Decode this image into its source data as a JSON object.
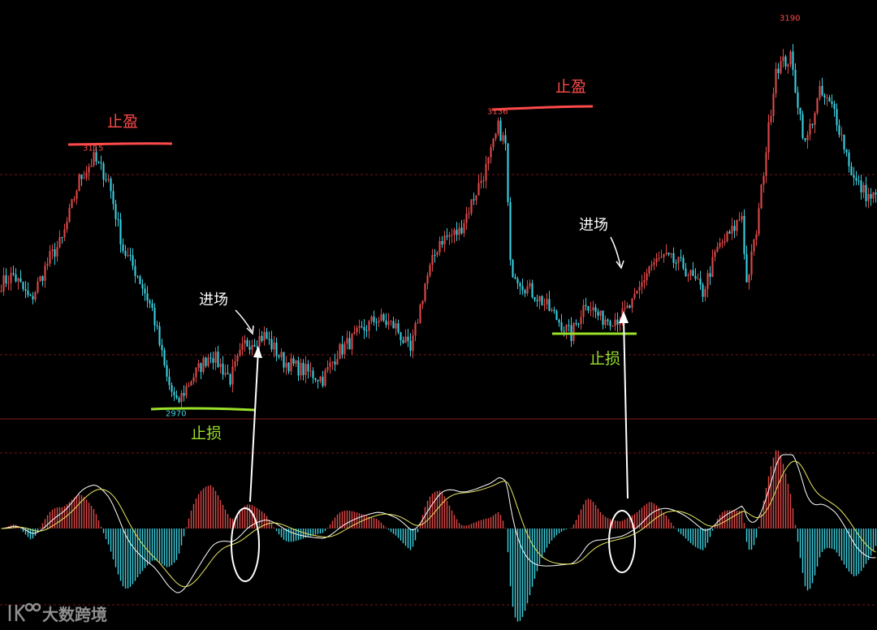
{
  "chart_data": {
    "type": "candlestick",
    "price_axis": {
      "ymin": 2945,
      "ymax": 3200
    },
    "price_labels": [
      {
        "value": 3115,
        "text": "3115",
        "color": "#ff4a4a"
      },
      {
        "value": 2970,
        "text": "2970",
        "color": "#3ad0e0"
      },
      {
        "value": 3136,
        "text": "3136",
        "color": "#ff4a4a"
      },
      {
        "value": 3190,
        "text": "3190",
        "color": "#ff4a4a"
      }
    ],
    "segments": [
      [
        0,
        3040,
        5,
        3045
      ],
      [
        5,
        3045,
        12,
        3030
      ],
      [
        12,
        3030,
        20,
        3055
      ],
      [
        20,
        3055,
        25,
        3065
      ],
      [
        25,
        3065,
        32,
        3100
      ],
      [
        32,
        3100,
        38,
        3112
      ],
      [
        38,
        3112,
        44,
        3100
      ],
      [
        44,
        3100,
        50,
        3060
      ],
      [
        50,
        3060,
        56,
        3045
      ],
      [
        56,
        3045,
        62,
        3025
      ],
      [
        62,
        3025,
        68,
        2985
      ],
      [
        68,
        2985,
        72,
        2970
      ],
      [
        72,
        2970,
        78,
        2985
      ],
      [
        78,
        2985,
        86,
        3000
      ],
      [
        86,
        3000,
        94,
        2985
      ],
      [
        94,
        2985,
        100,
        3005
      ],
      [
        100,
        3005,
        108,
        3010
      ],
      [
        108,
        3010,
        116,
        2995
      ],
      [
        116,
        2995,
        124,
        2990
      ],
      [
        124,
        2990,
        132,
        2985
      ],
      [
        132,
        2985,
        138,
        3000
      ],
      [
        138,
        3000,
        146,
        3010
      ],
      [
        146,
        3010,
        154,
        3020
      ],
      [
        154,
        3020,
        162,
        3015
      ],
      [
        162,
        3015,
        168,
        3000
      ],
      [
        168,
        3000,
        174,
        3040
      ],
      [
        174,
        3040,
        180,
        3065
      ],
      [
        180,
        3065,
        188,
        3070
      ],
      [
        188,
        3070,
        194,
        3090
      ],
      [
        194,
        3090,
        200,
        3110
      ],
      [
        200,
        3110,
        204,
        3130
      ],
      [
        204,
        3130,
        207,
        3120
      ],
      [
        207,
        3120,
        209,
        3050
      ],
      [
        209,
        3050,
        214,
        3040
      ],
      [
        214,
        3040,
        222,
        3030
      ],
      [
        222,
        3030,
        228,
        3020
      ],
      [
        228,
        3020,
        234,
        3010
      ],
      [
        234,
        3010,
        240,
        3030
      ],
      [
        240,
        3030,
        246,
        3020
      ],
      [
        246,
        3020,
        254,
        3020
      ],
      [
        254,
        3020,
        260,
        3030
      ],
      [
        260,
        3030,
        266,
        3050
      ],
      [
        266,
        3050,
        272,
        3055
      ],
      [
        272,
        3055,
        280,
        3050
      ],
      [
        280,
        3050,
        288,
        3035
      ],
      [
        288,
        3035,
        294,
        3060
      ],
      [
        294,
        3060,
        300,
        3070
      ],
      [
        300,
        3070,
        304,
        3080
      ],
      [
        304,
        3080,
        306,
        3040
      ],
      [
        306,
        3040,
        310,
        3070
      ],
      [
        310,
        3070,
        318,
        3165
      ],
      [
        318,
        3165,
        324,
        3170
      ],
      [
        324,
        3170,
        330,
        3120
      ],
      [
        330,
        3120,
        336,
        3150
      ],
      [
        336,
        3150,
        342,
        3140
      ],
      [
        342,
        3140,
        350,
        3100
      ],
      [
        350,
        3100,
        356,
        3090
      ]
    ],
    "series": [
      {
        "name": "DIF",
        "color": "#ffffff"
      },
      {
        "name": "DEA",
        "color": "#e8e860"
      },
      {
        "name": "MACD",
        "color": "#e05050"
      }
    ],
    "annotations": {
      "take_profit": "止盈",
      "stop_loss": "止损",
      "entry": "进场"
    }
  },
  "watermark": {
    "text": "大数跨境",
    "logo": "ik-logo-icon"
  },
  "colors": {
    "up": "#e04848",
    "down": "#3ad0e0",
    "background": "#000000"
  }
}
